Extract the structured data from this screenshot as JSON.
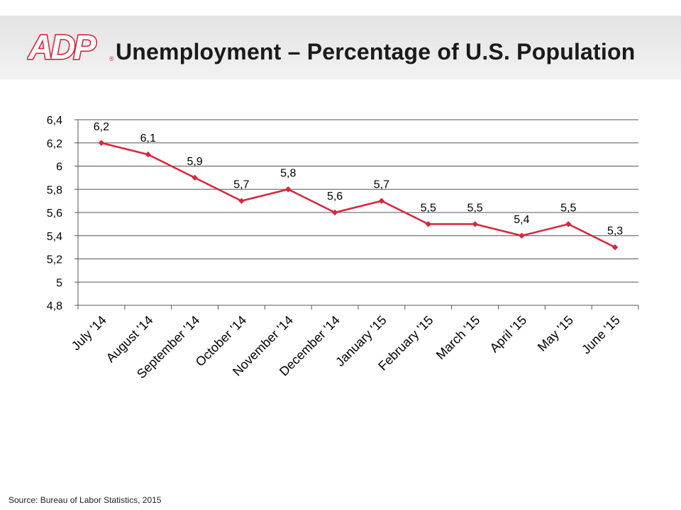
{
  "header": {
    "logo_text": "ADP",
    "logo_mark": "®",
    "title": "Unemployment – Percentage of U.S. Population"
  },
  "colors": {
    "series": "#d7263d",
    "logo": "#d7263d",
    "gridline": "#555555"
  },
  "chart_data": {
    "type": "line",
    "title": "",
    "xlabel": "",
    "ylabel": "",
    "categories": [
      "July '14",
      "August '14",
      "September '14",
      "October '14",
      "November '14",
      "December '14",
      "January '15",
      "February '15",
      "March '15",
      "April '15",
      "May '15",
      "June '15"
    ],
    "series": [
      {
        "values": [
          6.2,
          6.1,
          5.9,
          5.7,
          5.8,
          5.6,
          5.7,
          5.5,
          5.5,
          5.4,
          5.5,
          5.3
        ]
      }
    ],
    "data_labels": [
      "6,2",
      "6,1",
      "5,9",
      "5,7",
      "5,8",
      "5,6",
      "5,7",
      "5,5",
      "5,5",
      "5,4",
      "5,5",
      "5,3"
    ],
    "ylim": [
      4.8,
      6.4
    ],
    "yticks": [
      4.8,
      5.0,
      5.2,
      5.4,
      5.6,
      5.8,
      6.0,
      6.2,
      6.4
    ],
    "ytick_labels": [
      "4,8",
      "5",
      "5,2",
      "5,4",
      "5,6",
      "5,8",
      "6",
      "6,2",
      "6,4"
    ],
    "grid": true,
    "legend": "none",
    "marker": "diamond"
  },
  "footer": {
    "source": "Source: Bureau  of Labor Statistics, 2015"
  }
}
